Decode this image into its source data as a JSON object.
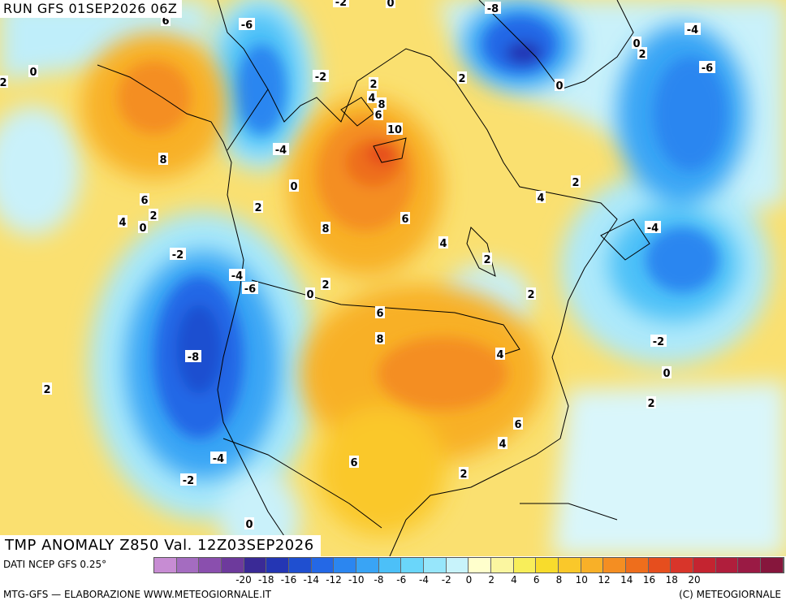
{
  "header": {
    "run_label": "RUN GFS 01SEP2026 06Z"
  },
  "title": "TMP ANOMALY Z850 Val. 12Z03SEP2026",
  "footer": {
    "data_source": "DATI NCEP GFS 0.25°",
    "credit_left": "MTG-GFS — ELABORAZIONE WWW.METEOGIORNALE.IT",
    "credit_right": "(C) METEOGIORNALE"
  },
  "legend": {
    "colors": [
      "#c78cd3",
      "#a46cc0",
      "#8a4fae",
      "#6d3a9c",
      "#3a2a96",
      "#2436b4",
      "#1f4fd0",
      "#2468e6",
      "#2b86f0",
      "#39a4f5",
      "#4cc0f8",
      "#6ad6fa",
      "#97e6fb",
      "#c8f3fb",
      "#ffffcc",
      "#fbf6a0",
      "#f8ee5a",
      "#f8dc2c",
      "#fac82a",
      "#f8b028",
      "#f48e22",
      "#ee6e1c",
      "#e64e1e",
      "#d8352a",
      "#c42430",
      "#b01e3c",
      "#9a1a44",
      "#86163c"
    ],
    "ticks": [
      "-20",
      "-18",
      "-16",
      "-14",
      "-12",
      "-10",
      "-8",
      "-6",
      "-4",
      "-2",
      "0",
      "2",
      "4",
      "6",
      "8",
      "10",
      "12",
      "14",
      "16",
      "18",
      "20"
    ]
  },
  "map_labels": [
    {
      "text": "6"
    },
    {
      "text": "-6"
    },
    {
      "text": "2"
    },
    {
      "text": "0"
    },
    {
      "text": "8"
    },
    {
      "text": "6"
    },
    {
      "text": "2"
    },
    {
      "text": "4"
    },
    {
      "text": "0"
    },
    {
      "text": "-2"
    },
    {
      "text": "-4"
    },
    {
      "text": "-6"
    },
    {
      "text": "-8"
    },
    {
      "text": "2"
    },
    {
      "text": "-4"
    },
    {
      "text": "-2"
    },
    {
      "text": "0"
    },
    {
      "text": "-2"
    },
    {
      "text": "-4"
    },
    {
      "text": "0"
    },
    {
      "text": "2"
    },
    {
      "text": "8"
    },
    {
      "text": "0"
    },
    {
      "text": "2"
    },
    {
      "text": "2"
    },
    {
      "text": "4"
    },
    {
      "text": "6"
    },
    {
      "text": "8"
    },
    {
      "text": "10"
    },
    {
      "text": "6"
    },
    {
      "text": "4"
    },
    {
      "text": "2"
    },
    {
      "text": "6"
    },
    {
      "text": "8"
    },
    {
      "text": "4"
    },
    {
      "text": "2"
    },
    {
      "text": "6"
    },
    {
      "text": "4"
    },
    {
      "text": "6"
    },
    {
      "text": "2"
    },
    {
      "text": "4"
    },
    {
      "text": "2"
    },
    {
      "text": "2"
    },
    {
      "text": "-8"
    },
    {
      "text": "0"
    },
    {
      "text": "2"
    },
    {
      "text": "0"
    },
    {
      "text": "-2"
    },
    {
      "text": "-4"
    },
    {
      "text": "-6"
    },
    {
      "text": "-4"
    },
    {
      "text": "-2"
    },
    {
      "text": "0"
    },
    {
      "text": "0"
    },
    {
      "text": "2"
    }
  ]
}
